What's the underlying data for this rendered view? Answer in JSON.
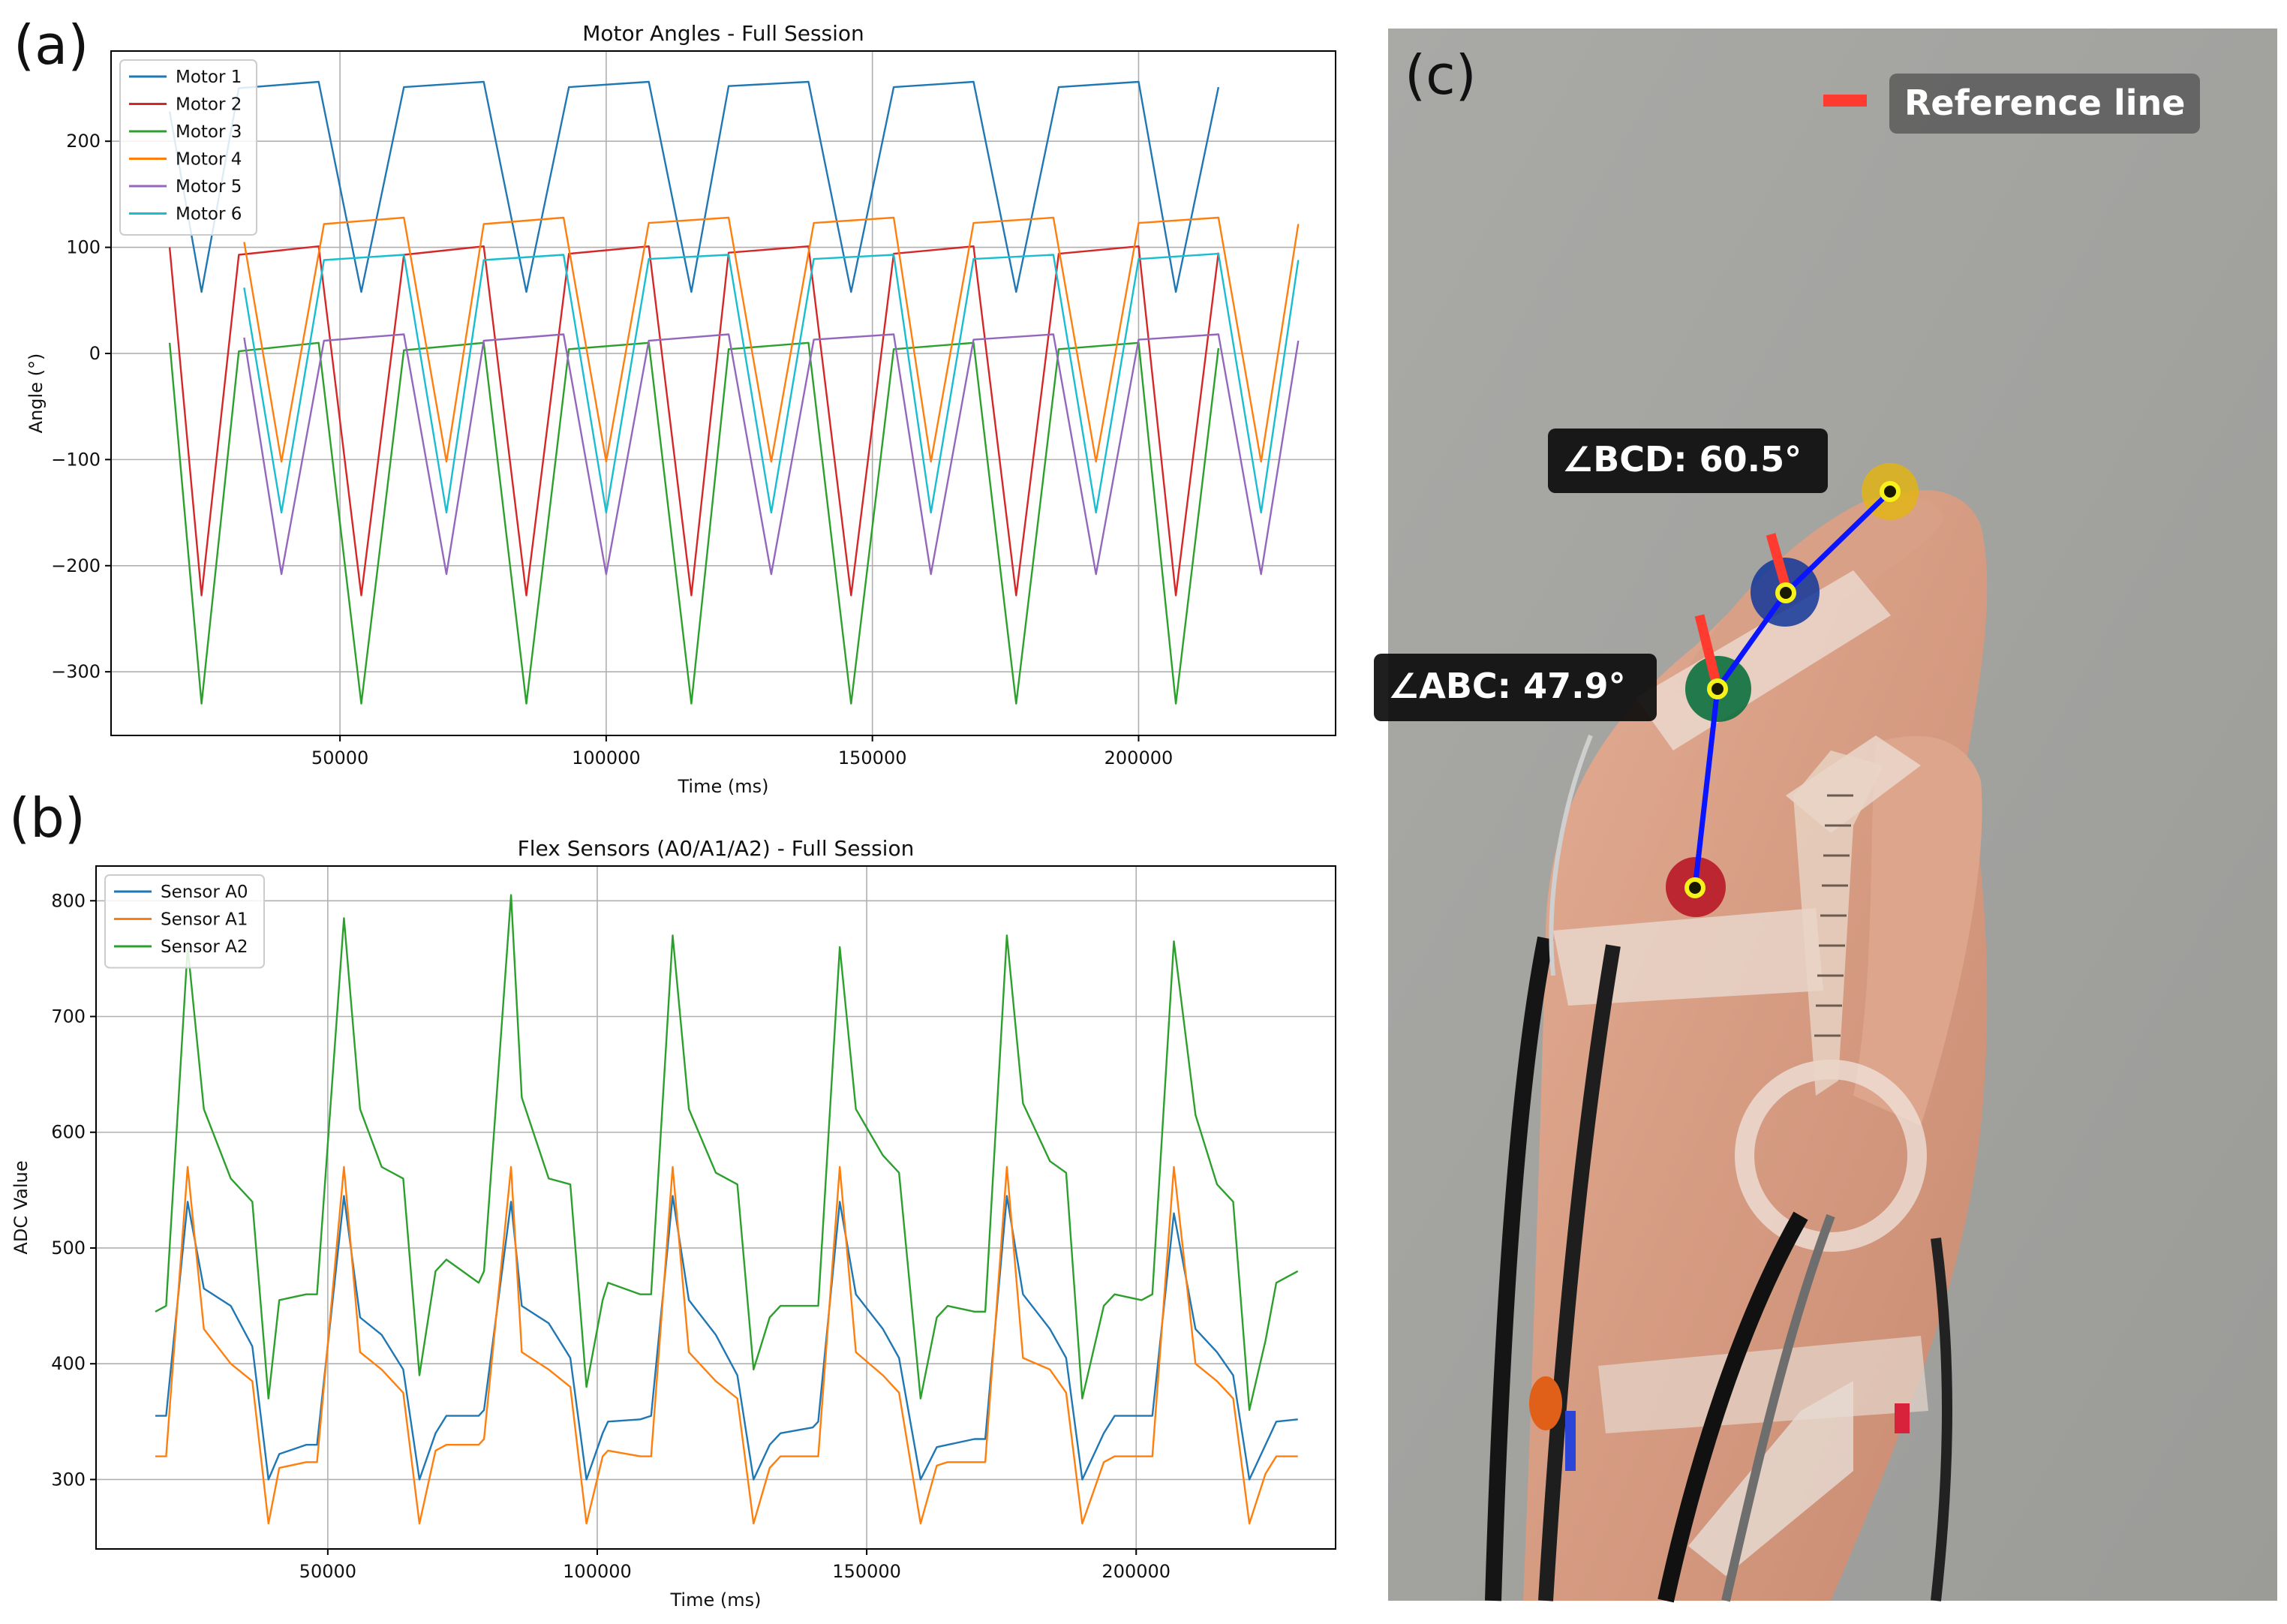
{
  "panels": {
    "a_label": "(a)",
    "b_label": "(b)",
    "c_label": "(c)"
  },
  "chart_data": [
    {
      "type": "line",
      "title": "Motor Angles - Full Session",
      "xlabel": "Time (ms)",
      "ylabel": "Angle (°)",
      "xlim": [
        7000,
        237000
      ],
      "ylim": [
        -360,
        285
      ],
      "xticks": [
        50000,
        100000,
        150000,
        200000
      ],
      "yticks": [
        -300,
        -200,
        -100,
        0,
        100,
        200
      ],
      "ytick_labels": [
        "−300",
        "−200",
        "−100",
        "0",
        "100",
        "200"
      ],
      "grid": true,
      "legend_position": "upper-left",
      "series": [
        {
          "name": "Motor 1",
          "color": "#1f77b4",
          "x": [
            18000,
            24000,
            31000,
            46000,
            54000,
            62000,
            77000,
            85000,
            93000,
            108000,
            116000,
            123000,
            138000,
            146000,
            154000,
            169000,
            177000,
            185000,
            200000,
            207000,
            215000
          ],
          "y": [
            228,
            58,
            250,
            256,
            58,
            251,
            256,
            58,
            251,
            256,
            58,
            252,
            256,
            58,
            251,
            256,
            58,
            251,
            256,
            58,
            251
          ]
        },
        {
          "name": "Motor 2",
          "color": "#d62728",
          "x": [
            18000,
            24000,
            31000,
            46000,
            54000,
            62000,
            77000,
            85000,
            93000,
            108000,
            116000,
            123000,
            138000,
            146000,
            154000,
            169000,
            177000,
            185000,
            200000,
            207000,
            215000
          ],
          "y": [
            100,
            -228,
            93,
            101,
            -228,
            93,
            101,
            -228,
            94,
            101,
            -228,
            95,
            101,
            -228,
            94,
            101,
            -228,
            94,
            101,
            -228,
            95
          ]
        },
        {
          "name": "Motor 3",
          "color": "#2ca02c",
          "x": [
            18000,
            24000,
            31000,
            46000,
            54000,
            62000,
            77000,
            85000,
            93000,
            108000,
            116000,
            123000,
            138000,
            146000,
            154000,
            169000,
            177000,
            185000,
            200000,
            207000,
            215000
          ],
          "y": [
            10,
            -330,
            2,
            10,
            -330,
            3,
            10,
            -330,
            4,
            10,
            -330,
            4,
            10,
            -330,
            4,
            10,
            -330,
            4,
            10,
            -330,
            5
          ]
        },
        {
          "name": "Motor 4",
          "color": "#ff7f0e",
          "x": [
            32000,
            39000,
            47000,
            62000,
            70000,
            77000,
            92000,
            100000,
            108000,
            123000,
            131000,
            139000,
            154000,
            161000,
            169000,
            184000,
            192000,
            200000,
            215000,
            223000,
            230000
          ],
          "y": [
            105,
            -102,
            122,
            128,
            -102,
            122,
            128,
            -102,
            123,
            128,
            -102,
            123,
            128,
            -102,
            123,
            128,
            -102,
            123,
            128,
            -102,
            122
          ]
        },
        {
          "name": "Motor 5",
          "color": "#9467bd",
          "x": [
            32000,
            39000,
            47000,
            62000,
            70000,
            77000,
            92000,
            100000,
            108000,
            123000,
            131000,
            139000,
            154000,
            161000,
            169000,
            184000,
            192000,
            200000,
            215000,
            223000,
            230000
          ],
          "y": [
            15,
            -208,
            12,
            18,
            -208,
            12,
            18,
            -208,
            12,
            18,
            -208,
            13,
            18,
            -208,
            13,
            18,
            -208,
            13,
            18,
            -208,
            12
          ]
        },
        {
          "name": "Motor 6",
          "color": "#17becf",
          "x": [
            32000,
            39000,
            47000,
            62000,
            70000,
            77000,
            92000,
            100000,
            108000,
            123000,
            131000,
            139000,
            154000,
            161000,
            169000,
            184000,
            192000,
            200000,
            215000,
            223000,
            230000
          ],
          "y": [
            62,
            -150,
            88,
            93,
            -150,
            88,
            93,
            -150,
            89,
            93,
            -150,
            89,
            93,
            -150,
            89,
            93,
            -150,
            89,
            94,
            -150,
            88
          ]
        }
      ]
    },
    {
      "type": "line",
      "title": "Flex Sensors (A0/A1/A2) - Full Session",
      "xlabel": "Time (ms)",
      "ylabel": "ADC Value",
      "xlim": [
        7000,
        237000
      ],
      "ylim": [
        240,
        830
      ],
      "xticks": [
        50000,
        100000,
        150000,
        200000
      ],
      "yticks": [
        300,
        400,
        500,
        600,
        700,
        800
      ],
      "ytick_labels": [
        "300",
        "400",
        "500",
        "600",
        "700",
        "800"
      ],
      "grid": true,
      "legend_position": "upper-left",
      "series": [
        {
          "name": "Sensor A0",
          "color": "#1f77b4",
          "x": [
            18000,
            20000,
            24000,
            27000,
            32000,
            36000,
            39000,
            41000,
            46000,
            48000,
            53000,
            56000,
            60000,
            64000,
            67000,
            70000,
            72000,
            78000,
            79000,
            84000,
            86000,
            91000,
            95000,
            98000,
            101000,
            102000,
            108000,
            110000,
            114000,
            117000,
            122000,
            126000,
            129000,
            132000,
            134000,
            140000,
            141000,
            145000,
            148000,
            153000,
            156000,
            160000,
            163000,
            165000,
            170000,
            172000,
            176000,
            179000,
            184000,
            187000,
            190000,
            194000,
            196000,
            201000,
            203000,
            207000,
            211000,
            215000,
            218000,
            221000,
            224000,
            226000,
            230000
          ],
          "y": [
            355,
            355,
            540,
            465,
            450,
            415,
            300,
            322,
            330,
            330,
            545,
            440,
            425,
            395,
            300,
            340,
            355,
            355,
            360,
            540,
            450,
            435,
            405,
            300,
            340,
            350,
            352,
            355,
            545,
            455,
            425,
            390,
            300,
            330,
            340,
            345,
            350,
            540,
            460,
            430,
            405,
            300,
            328,
            330,
            335,
            335,
            545,
            460,
            430,
            405,
            300,
            340,
            355,
            355,
            355,
            530,
            430,
            410,
            390,
            300,
            330,
            350,
            352
          ]
        },
        {
          "name": "Sensor A1",
          "color": "#ff7f0e",
          "x": [
            18000,
            20000,
            24000,
            27000,
            32000,
            36000,
            39000,
            41000,
            46000,
            48000,
            53000,
            56000,
            60000,
            64000,
            67000,
            70000,
            72000,
            78000,
            79000,
            84000,
            86000,
            91000,
            95000,
            98000,
            101000,
            102000,
            108000,
            110000,
            114000,
            117000,
            122000,
            126000,
            129000,
            132000,
            134000,
            140000,
            141000,
            145000,
            148000,
            153000,
            156000,
            160000,
            163000,
            165000,
            170000,
            172000,
            176000,
            179000,
            184000,
            187000,
            190000,
            194000,
            196000,
            201000,
            203000,
            207000,
            211000,
            215000,
            218000,
            221000,
            224000,
            226000,
            230000
          ],
          "y": [
            320,
            320,
            570,
            430,
            400,
            385,
            262,
            310,
            315,
            315,
            570,
            410,
            395,
            375,
            262,
            325,
            330,
            330,
            335,
            570,
            410,
            395,
            380,
            262,
            320,
            325,
            320,
            320,
            570,
            410,
            385,
            370,
            262,
            310,
            320,
            320,
            320,
            570,
            410,
            390,
            375,
            262,
            312,
            315,
            315,
            315,
            570,
            405,
            395,
            375,
            262,
            315,
            320,
            320,
            320,
            570,
            400,
            385,
            370,
            262,
            305,
            320,
            320
          ]
        },
        {
          "name": "Sensor A2",
          "color": "#2ca02c",
          "x": [
            18000,
            20000,
            24000,
            27000,
            32000,
            36000,
            39000,
            41000,
            46000,
            48000,
            53000,
            56000,
            60000,
            64000,
            67000,
            70000,
            72000,
            78000,
            79000,
            84000,
            86000,
            91000,
            95000,
            98000,
            101000,
            102000,
            108000,
            110000,
            114000,
            117000,
            122000,
            126000,
            129000,
            132000,
            134000,
            140000,
            141000,
            145000,
            148000,
            153000,
            156000,
            160000,
            163000,
            165000,
            170000,
            172000,
            176000,
            179000,
            184000,
            187000,
            190000,
            194000,
            196000,
            201000,
            203000,
            207000,
            211000,
            215000,
            218000,
            221000,
            224000,
            226000,
            230000
          ],
          "y": [
            445,
            450,
            760,
            620,
            560,
            540,
            370,
            455,
            460,
            460,
            785,
            620,
            570,
            560,
            390,
            480,
            490,
            470,
            480,
            805,
            630,
            560,
            555,
            380,
            455,
            470,
            460,
            460,
            770,
            620,
            565,
            555,
            395,
            440,
            450,
            450,
            450,
            760,
            620,
            580,
            565,
            370,
            440,
            450,
            445,
            445,
            770,
            625,
            575,
            565,
            370,
            450,
            460,
            455,
            460,
            765,
            615,
            555,
            540,
            360,
            420,
            470,
            480
          ]
        }
      ]
    }
  ],
  "photo": {
    "reference_label": "Reference line",
    "angle_bcd_label": "∠BCD: 60.5°",
    "angle_abc_label": "∠ABC: 47.9°",
    "reference_color": "#ff3b30",
    "skeleton_color": "#0a14ff"
  }
}
